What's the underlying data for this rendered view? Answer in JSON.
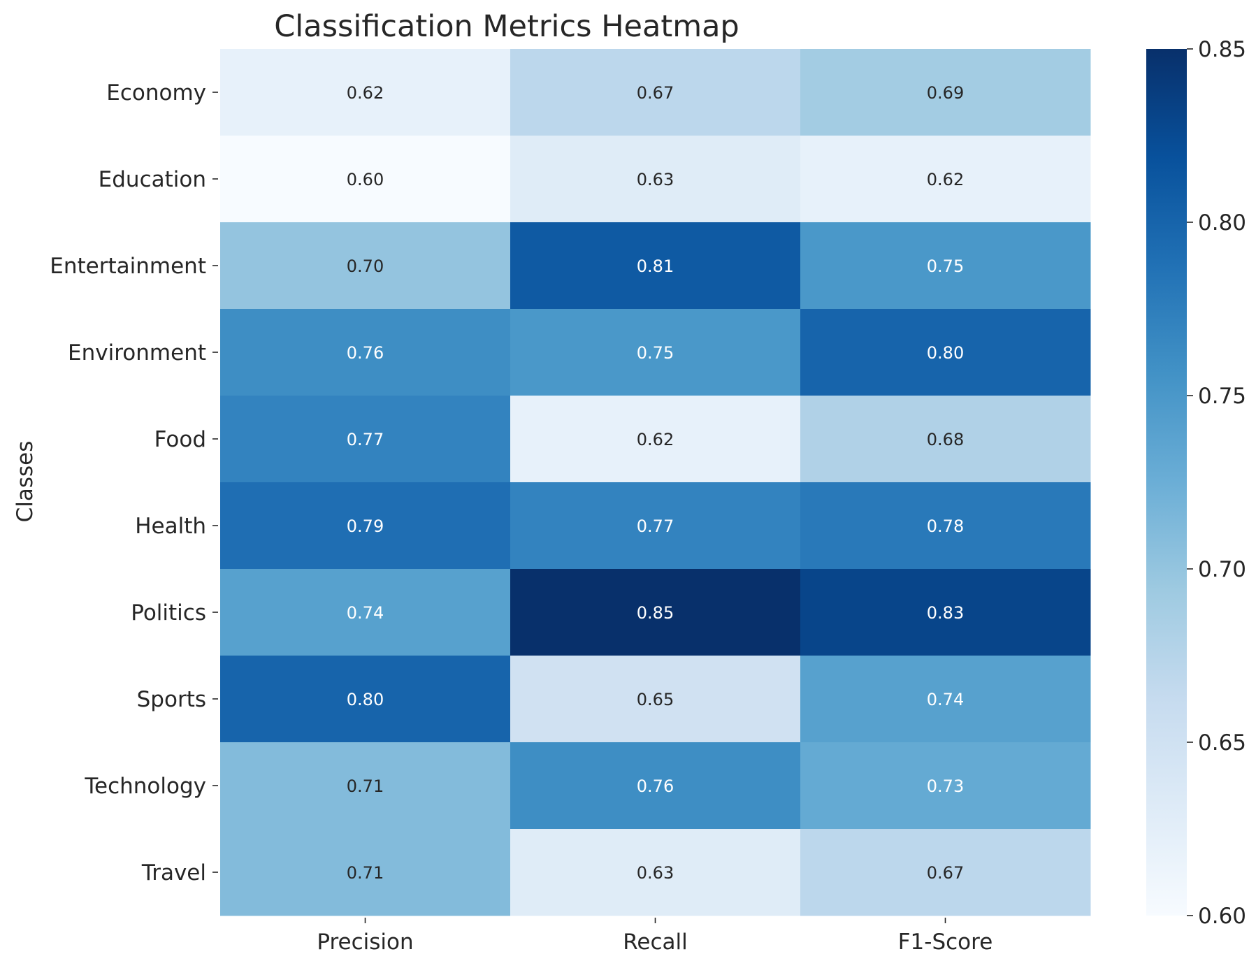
{
  "chart_data": {
    "type": "heatmap",
    "title": "Classification Metrics Heatmap",
    "ylabel": "Classes",
    "xlabel": "",
    "columns": [
      "Precision",
      "Recall",
      "F1-Score"
    ],
    "rows": [
      "Economy",
      "Education",
      "Entertainment",
      "Environment",
      "Food",
      "Health",
      "Politics",
      "Sports",
      "Technology",
      "Travel"
    ],
    "values": [
      [
        0.62,
        0.67,
        0.69
      ],
      [
        0.6,
        0.63,
        0.62
      ],
      [
        0.7,
        0.81,
        0.75
      ],
      [
        0.76,
        0.75,
        0.8
      ],
      [
        0.77,
        0.62,
        0.68
      ],
      [
        0.79,
        0.77,
        0.78
      ],
      [
        0.74,
        0.85,
        0.83
      ],
      [
        0.8,
        0.65,
        0.74
      ],
      [
        0.71,
        0.76,
        0.73
      ],
      [
        0.71,
        0.63,
        0.67
      ]
    ],
    "value_format": "2 decimals",
    "colormap": "Blues",
    "colorbar": {
      "range": [
        0.6,
        0.85
      ],
      "ticks": [
        "0.60",
        "0.65",
        "0.70",
        "0.75",
        "0.80",
        "0.85"
      ]
    },
    "colors": {
      "low": "#f7fbff",
      "high": "#08306b",
      "text_light": "#ffffff",
      "text_dark": "#262626"
    }
  }
}
